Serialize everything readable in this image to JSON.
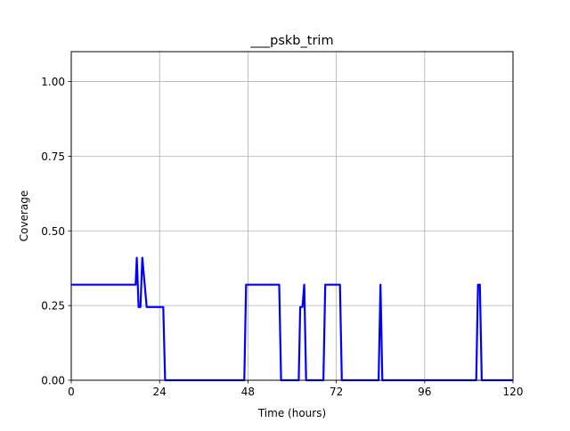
{
  "chart_data": {
    "type": "line",
    "title": "___pskb_trim",
    "xlabel": "Time (hours)",
    "ylabel": "Coverage",
    "xlim": [
      0,
      120
    ],
    "ylim": [
      0,
      1.1
    ],
    "xticks": [
      0,
      24,
      48,
      72,
      96,
      120
    ],
    "xtick_labels": [
      "0",
      "24",
      "48",
      "72",
      "96",
      "120"
    ],
    "yticks": [
      0,
      0.25,
      0.5,
      0.75,
      1.0
    ],
    "ytick_labels": [
      "0.00",
      "0.25",
      "0.50",
      "0.75",
      "1.00"
    ],
    "grid": true,
    "series": [
      {
        "color": "#0000ff",
        "x": [
          0,
          17.5,
          17.8,
          18.3,
          18.8,
          19.3,
          20.5,
          25.0,
          25.5,
          47.0,
          47.5,
          56.5,
          57.0,
          61.8,
          62.2,
          62.8,
          63.3,
          63.8,
          68.5,
          69.0,
          73.0,
          73.5,
          83.5,
          84.0,
          84.5,
          110.0,
          110.5,
          111.0,
          111.5,
          120
        ],
        "y": [
          0.32,
          0.32,
          0.41,
          0.245,
          0.245,
          0.41,
          0.245,
          0.245,
          0.0,
          0.0,
          0.32,
          0.32,
          0.0,
          0.0,
          0.245,
          0.245,
          0.32,
          0.0,
          0.0,
          0.32,
          0.32,
          0.0,
          0.0,
          0.32,
          0.0,
          0.0,
          0.32,
          0.32,
          0.0,
          0.0
        ]
      }
    ]
  }
}
